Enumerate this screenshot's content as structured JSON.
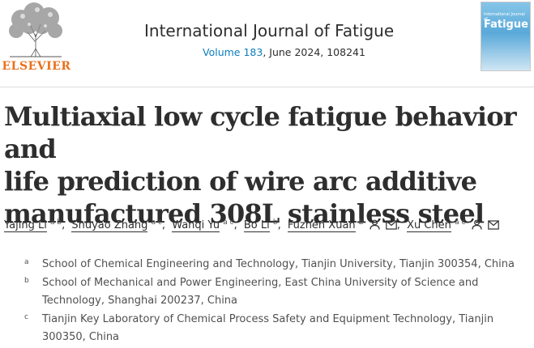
{
  "publisher": {
    "name": "ELSEVIER"
  },
  "journal": {
    "title": "International Journal of Fatigue",
    "volume_link": "Volume 183",
    "issue_info": ", June 2024, 108241",
    "cover_small_text": "International Journal of",
    "cover_word": "Fatigue"
  },
  "article": {
    "title_lines": [
      "Multiaxial low cycle fatigue behavior and",
      "life prediction of wire arc additive",
      "manufactured 308L stainless steel"
    ]
  },
  "authors": [
    {
      "name": "Yajing Li",
      "aff": "a b",
      "icons": []
    },
    {
      "name": "Shuyao Zhang",
      "aff": "a c",
      "icons": []
    },
    {
      "name": "Wanqi Yu",
      "aff": "a c",
      "icons": []
    },
    {
      "name": "Bo Li",
      "aff": "b",
      "icons": []
    },
    {
      "name": "Fuzhen Xuan",
      "aff": "b",
      "icons": [
        "person-icon",
        "mail-icon"
      ]
    },
    {
      "name": "Xu Chen",
      "aff": "a c",
      "icons": [
        "person-icon",
        "mail-icon"
      ]
    }
  ],
  "affiliations": [
    {
      "label": "a",
      "text": "School of Chemical Engineering and Technology, Tianjin University, Tianjin 300354, China"
    },
    {
      "label": "b",
      "text": "School of Mechanical and Power Engineering, East China University of Science and Technology, Shanghai 200237, China"
    },
    {
      "label": "c",
      "text": "Tianjin Key Laboratory of Chemical Process Safety and Equipment Technology, Tianjin 300350, China"
    }
  ],
  "colors": {
    "link": "#0c7dbb",
    "elsevier_orange": "#e9711c",
    "text": "#2e2e2e"
  }
}
